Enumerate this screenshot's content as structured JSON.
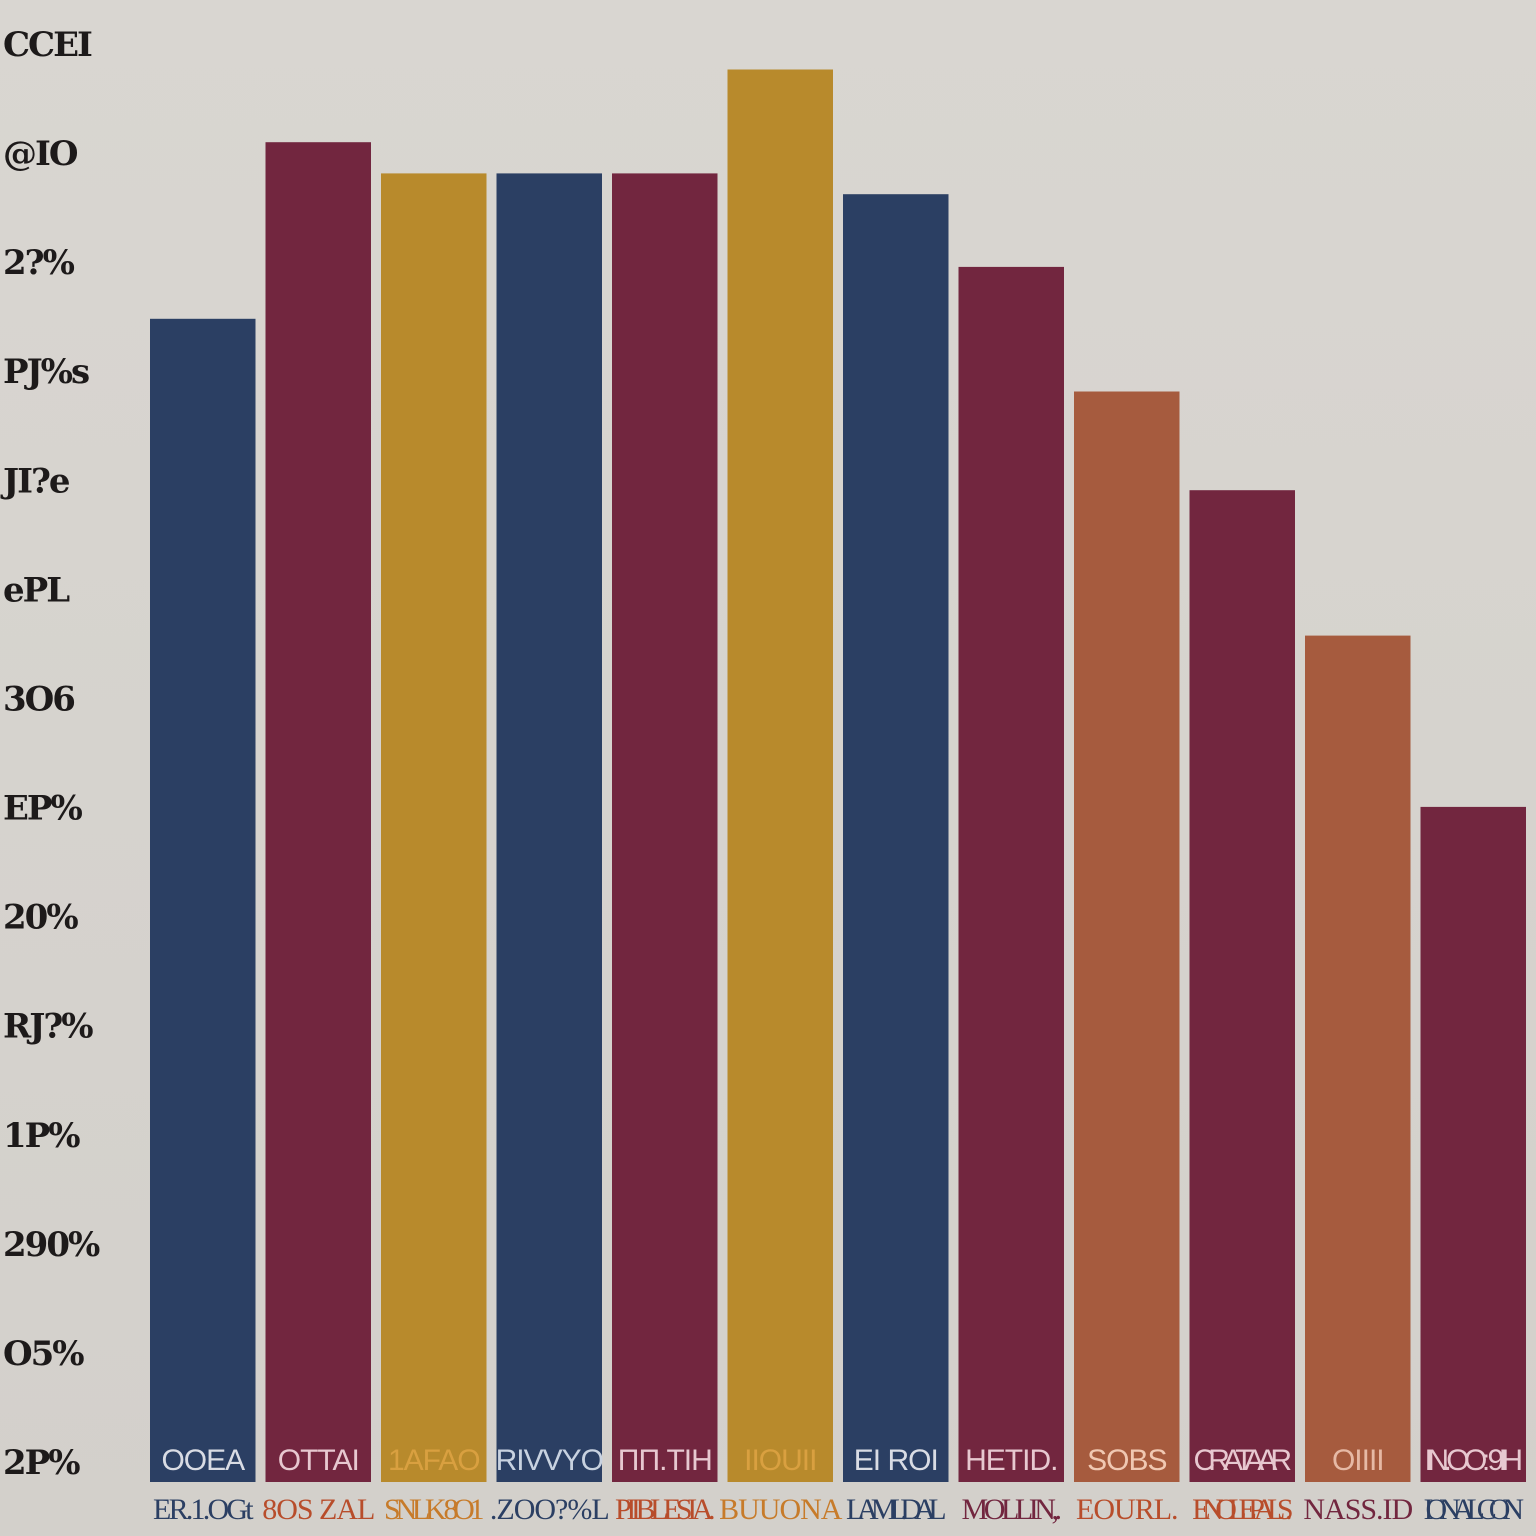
{
  "chart_data": {
    "type": "bar",
    "title": "",
    "xlabel": "",
    "ylabel": "",
    "ytick_labels": [
      "CCEI",
      "@IO",
      "2?%",
      "PJ%s",
      "JI?e",
      "ePL",
      "3O6",
      "EP%",
      "20%",
      "RJ?%",
      "1P%",
      "290%",
      "O5%",
      "2P%"
    ],
    "categories": [
      "OOEA",
      "OTTAI",
      "1AFAO",
      "RIVVYO",
      "ΠΠ.ΤΙΗ",
      "IIOUII",
      "EI ROI",
      "HETID.",
      "SOBS",
      "CRA TAAR",
      "OIIII",
      "IN.OO: 9IH"
    ],
    "category_sublabels": [
      "ER.1.OGt",
      "8OS ZAL",
      "SNLK 8O1",
      ".ZOO?%L",
      "PIIBLESIA.",
      "BUUONA",
      "LAML.DAL",
      "MOLLIN,.",
      "EOURL.",
      "ENOLEPALS.",
      "NASS.ID",
      "IONALCON"
    ],
    "values": [
      1120,
      1290,
      1260,
      1260,
      1260,
      1360,
      1240,
      1170,
      1050,
      955,
      815,
      650
    ],
    "ylim": [
      0,
      1400
    ],
    "grid": false,
    "legend": "none",
    "bar_colors": [
      "#2b3f63",
      "#72263f",
      "#b88a2c",
      "#2b3f63",
      "#72263f",
      "#b88a2c",
      "#2b3f63",
      "#72263f",
      "#a65b3e",
      "#72263f",
      "#a65b3e",
      "#72263f"
    ],
    "bar_label_colors": [
      "#d9dce4",
      "#e7c8d0",
      "#d9a040",
      "#c8d2e0",
      "#e7c8d0",
      "#d9a040",
      "#d9dce4",
      "#e7c8d0",
      "#f0c8b2",
      "#e7c8d0",
      "#e6b9a5",
      "#e7c8d0"
    ],
    "category_label_colors": [
      "#2b3f63",
      "#b84d2b",
      "#c77b2a",
      "#2b3f63",
      "#b84d2b",
      "#c77b2a",
      "#2b3f63",
      "#72263f",
      "#b84d2b",
      "#b84d2b",
      "#72263f",
      "#2b3f63"
    ]
  }
}
